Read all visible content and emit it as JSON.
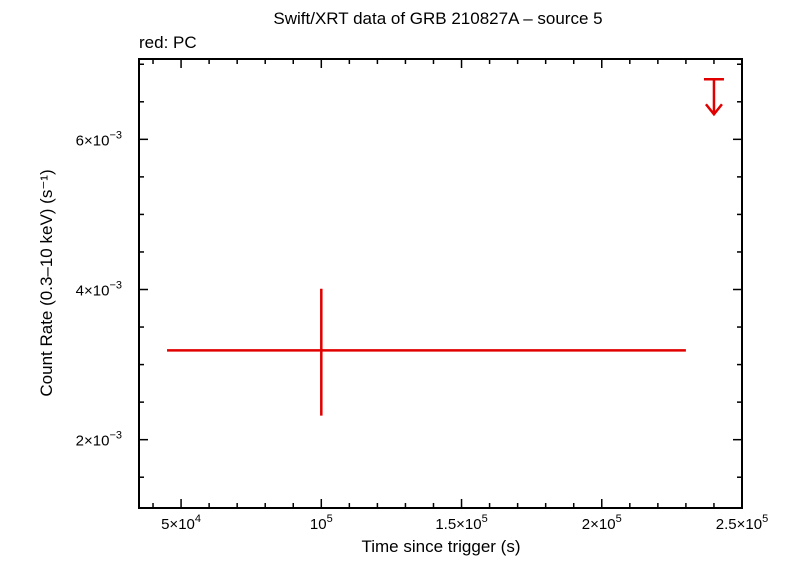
{
  "chart_data": {
    "type": "scatter",
    "title": "Swift/XRT data of GRB 210827A – source 5",
    "subtitle": "red: PC",
    "xlabel": "Time since trigger (s)",
    "ylabel": "Count Rate (0.3–10 keV) (s⁻¹)",
    "xlim": [
      35000,
      250000
    ],
    "ylim": [
      0.00109,
      0.00707
    ],
    "grid": false,
    "x_ticks": [
      {
        "value": 50000,
        "base": "5×10",
        "exp": "4"
      },
      {
        "value": 100000,
        "base": "10",
        "exp": "5"
      },
      {
        "value": 150000,
        "base": "1.5×10",
        "exp": "5"
      },
      {
        "value": 200000,
        "base": "2×10",
        "exp": "5"
      },
      {
        "value": 250000,
        "base": "2.5×10",
        "exp": "5"
      }
    ],
    "y_ticks": [
      {
        "value": 0.002,
        "base": "2×10",
        "exp": "−3"
      },
      {
        "value": 0.004,
        "base": "4×10",
        "exp": "−3"
      },
      {
        "value": 0.006,
        "base": "6×10",
        "exp": "−3"
      }
    ],
    "series": [
      {
        "name": "PC",
        "color": "#e00000",
        "points": [
          {
            "x": 100000,
            "xerr_low": 55000,
            "xerr_high": 130000,
            "y": 0.00319,
            "yerr_low": 0.00087,
            "yerr_high": 0.00082
          }
        ],
        "upper_limits": [
          {
            "x": 240000,
            "y": 0.0068
          }
        ]
      }
    ]
  }
}
